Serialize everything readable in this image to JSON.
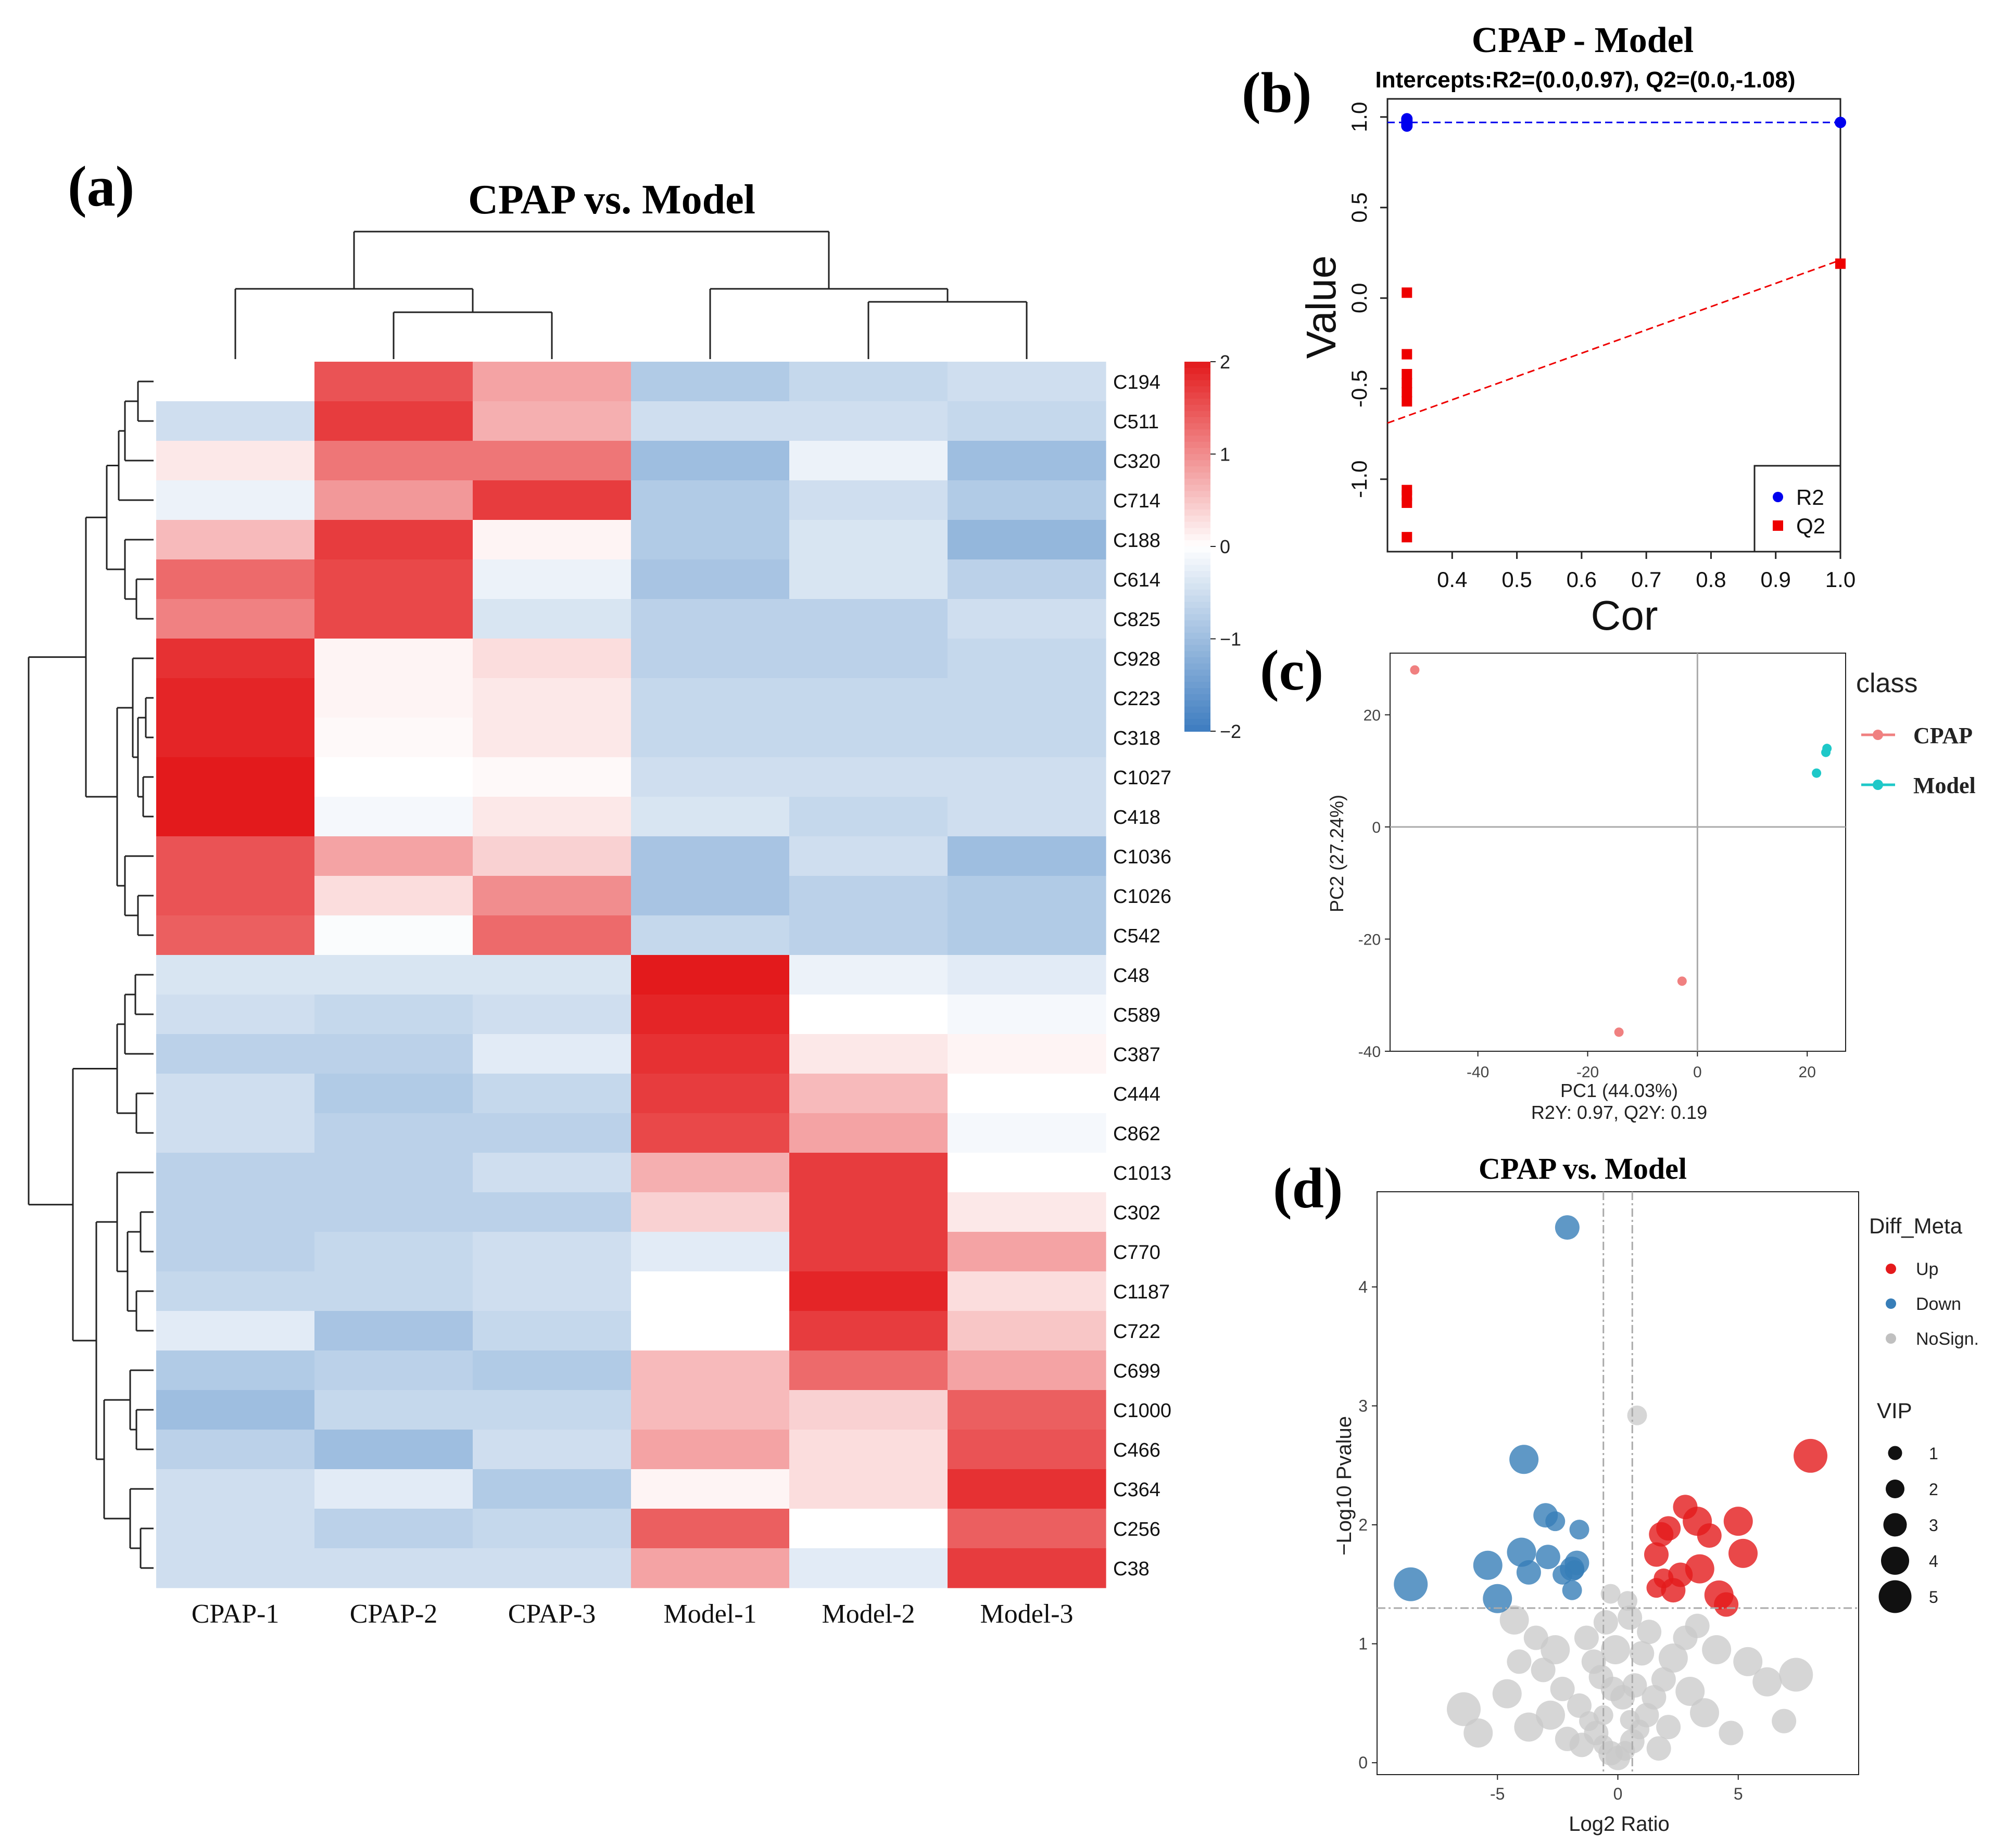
{
  "panel_labels": {
    "a": "(a)",
    "b": "(b)",
    "c": "(c)",
    "d": "(d)"
  },
  "chart_data": [
    {
      "type": "heatmap",
      "title": "CPAP vs. Model",
      "columns": [
        "CPAP-1",
        "CPAP-2",
        "CPAP-3",
        "Model-1",
        "Model-2",
        "Model-3"
      ],
      "rows": [
        "C194",
        "C511",
        "C320",
        "C714",
        "C188",
        "C614",
        "C825",
        "C928",
        "C223",
        "C318",
        "C1027",
        "C418",
        "C1036",
        "C1026",
        "C542",
        "C48",
        "C589",
        "C387",
        "C444",
        "C862",
        "C1013",
        "C302",
        "C770",
        "C1187",
        "C722",
        "C699",
        "C1000",
        "C466",
        "C364",
        "C256",
        "C38"
      ],
      "values": [
        [
          0.0,
          1.5,
          0.8,
          -0.8,
          -0.6,
          -0.5
        ],
        [
          -0.5,
          1.7,
          0.7,
          -0.5,
          -0.5,
          -0.6
        ],
        [
          0.2,
          1.2,
          1.2,
          -1.0,
          -0.2,
          -1.0
        ],
        [
          -0.2,
          0.9,
          1.7,
          -0.8,
          -0.5,
          -0.8
        ],
        [
          0.6,
          1.7,
          0.1,
          -0.8,
          -0.4,
          -1.1
        ],
        [
          1.3,
          1.6,
          -0.2,
          -0.9,
          -0.4,
          -0.7
        ],
        [
          1.1,
          1.6,
          -0.4,
          -0.7,
          -0.7,
          -0.5
        ],
        [
          1.8,
          0.1,
          0.3,
          -0.7,
          -0.7,
          -0.6
        ],
        [
          1.9,
          0.1,
          0.2,
          -0.6,
          -0.6,
          -0.6
        ],
        [
          1.9,
          0.05,
          0.2,
          -0.6,
          -0.6,
          -0.6
        ],
        [
          2.0,
          0.0,
          0.05,
          -0.5,
          -0.5,
          -0.5
        ],
        [
          2.0,
          -0.1,
          0.2,
          -0.4,
          -0.6,
          -0.5
        ],
        [
          1.5,
          0.8,
          0.4,
          -0.9,
          -0.5,
          -1.0
        ],
        [
          1.5,
          0.3,
          1.0,
          -0.9,
          -0.7,
          -0.8
        ],
        [
          1.4,
          -0.05,
          1.3,
          -0.6,
          -0.7,
          -0.8
        ],
        [
          -0.4,
          -0.4,
          -0.4,
          2.0,
          -0.2,
          -0.3
        ],
        [
          -0.5,
          -0.6,
          -0.5,
          1.9,
          0.0,
          -0.1
        ],
        [
          -0.7,
          -0.7,
          -0.3,
          1.8,
          0.2,
          0.1
        ],
        [
          -0.5,
          -0.8,
          -0.6,
          1.7,
          0.6,
          0.0
        ],
        [
          -0.5,
          -0.7,
          -0.7,
          1.6,
          0.8,
          -0.1
        ],
        [
          -0.7,
          -0.7,
          -0.5,
          0.7,
          1.7,
          0.0
        ],
        [
          -0.7,
          -0.7,
          -0.7,
          0.4,
          1.7,
          0.2
        ],
        [
          -0.7,
          -0.6,
          -0.5,
          -0.3,
          1.7,
          0.8
        ],
        [
          -0.6,
          -0.6,
          -0.5,
          0.0,
          1.9,
          0.3
        ],
        [
          -0.3,
          -0.9,
          -0.6,
          0.0,
          1.7,
          0.5
        ],
        [
          -0.8,
          -0.7,
          -0.8,
          0.6,
          1.3,
          0.8
        ],
        [
          -1.0,
          -0.6,
          -0.6,
          0.6,
          0.4,
          1.4
        ],
        [
          -0.7,
          -1.0,
          -0.5,
          0.8,
          0.3,
          1.5
        ],
        [
          -0.5,
          -0.3,
          -0.8,
          0.1,
          0.3,
          1.8
        ],
        [
          -0.5,
          -0.7,
          -0.6,
          1.4,
          0.0,
          1.4
        ],
        [
          -0.5,
          -0.5,
          -0.5,
          0.8,
          -0.3,
          1.7
        ]
      ],
      "colorbar": {
        "min": -2,
        "max": 2,
        "ticks": [
          2,
          1,
          0,
          -1,
          -2
        ],
        "tick_labels": [
          "2",
          "1",
          "0",
          "−1",
          "−2"
        ],
        "low_color": "#3d7cc0",
        "mid_color": "#ffffff",
        "high_color": "#e31a1c"
      }
    },
    {
      "type": "scatter",
      "title": "CPAP - Model",
      "subtitle": "Intercepts:R2=(0.0,0.97), Q2=(0.0,-1.08)",
      "xlabel": "Cor",
      "ylabel": "Value",
      "xlim": [
        0.3,
        1.0
      ],
      "ylim": [
        -1.4,
        1.1
      ],
      "xticks": [
        0.4,
        0.5,
        0.6,
        0.7,
        0.8,
        0.9,
        1.0
      ],
      "xtick_labels": [
        "0.4",
        "0.5",
        "0.6",
        "0.7",
        "0.8",
        "0.9",
        "1.0"
      ],
      "yticks": [
        -1.0,
        -0.5,
        0.0,
        0.5,
        1.0
      ],
      "ytick_labels": [
        "-1.0",
        "-0.5",
        "0.0",
        "0.5",
        "1.0"
      ],
      "series": [
        {
          "name": "R2",
          "color": "#0000ee",
          "marker": "circle",
          "points": [
            [
              0.33,
              0.99
            ],
            [
              0.33,
              0.98
            ],
            [
              0.33,
              0.97
            ],
            [
              0.33,
              0.96
            ],
            [
              0.33,
              0.95
            ],
            [
              1.0,
              0.97
            ]
          ],
          "line": {
            "x": [
              0.3,
              1.0
            ],
            "y": [
              0.97,
              0.97
            ]
          }
        },
        {
          "name": "Q2",
          "color": "#ee0000",
          "marker": "square",
          "points": [
            [
              0.33,
              0.03
            ],
            [
              0.33,
              -0.31
            ],
            [
              0.33,
              -0.42
            ],
            [
              0.33,
              -0.47
            ],
            [
              0.33,
              -0.52
            ],
            [
              0.33,
              -0.57
            ],
            [
              0.33,
              -1.06
            ],
            [
              0.33,
              -1.09
            ],
            [
              0.33,
              -1.13
            ],
            [
              0.33,
              -1.32
            ],
            [
              1.0,
              0.19
            ]
          ],
          "line": {
            "x": [
              0.3,
              1.0
            ],
            "y": [
              -0.69,
              0.21
            ]
          }
        }
      ],
      "legend": {
        "position": "bottom-right",
        "entries": [
          "R2",
          "Q2"
        ]
      }
    },
    {
      "type": "scatter",
      "xlabel": "PC1 (44.03%)",
      "xlabel2": "R2Y: 0.97, Q2Y: 0.19",
      "ylabel": "PC2 (27.24%)",
      "xlim": [
        -56,
        27
      ],
      "ylim": [
        -40,
        31
      ],
      "xticks": [
        -40,
        -20,
        0,
        20
      ],
      "xtick_labels": [
        "-40",
        "-20",
        "0",
        "20"
      ],
      "yticks": [
        20,
        0,
        -20,
        -40
      ],
      "ytick_labels": [
        "20",
        "0",
        "-20",
        "-40"
      ],
      "legend": {
        "title": "class",
        "position": "right",
        "entries": [
          "CPAP",
          "Model"
        ]
      },
      "series": [
        {
          "name": "CPAP",
          "color": "#f08080",
          "points": [
            [
              -51.5,
              28.0
            ],
            [
              -2.8,
              -27.5
            ],
            [
              -14.3,
              -36.6
            ]
          ]
        },
        {
          "name": "Model",
          "color": "#1ec8c8",
          "points": [
            [
              23.6,
              14.0
            ],
            [
              23.4,
              13.3
            ],
            [
              21.7,
              9.6
            ]
          ]
        }
      ]
    },
    {
      "type": "scatter",
      "title": "CPAP vs. Model",
      "xlabel": "Log2 Ratio",
      "ylabel": "−Log10 Pvalue",
      "xlim": [
        -10,
        10
      ],
      "ylim": [
        -0.1,
        4.8
      ],
      "xticks": [
        -5,
        0,
        5
      ],
      "xtick_labels": [
        "-5",
        "0",
        "5"
      ],
      "yticks": [
        0,
        1,
        2,
        3,
        4
      ],
      "ytick_labels": [
        "0",
        "1",
        "2",
        "3",
        "4"
      ],
      "thresholds": {
        "x": [
          -0.6,
          0.6
        ],
        "y": 1.3
      },
      "legend": {
        "title": "Diff_Meta",
        "entries": [
          {
            "label": "Up",
            "color": "#e41a1c"
          },
          {
            "label": "Down",
            "color": "#377eb8"
          },
          {
            "label": "NoSign.",
            "color": "#c0c0c0"
          }
        ],
        "size_title": "VIP",
        "size_entries": [
          "1",
          "2",
          "3",
          "4",
          "5"
        ]
      },
      "series": [
        {
          "name": "Up",
          "color": "#e41a1c",
          "points": [
            [
              8.0,
              2.58,
              5
            ],
            [
              2.8,
              2.15,
              3
            ],
            [
              5.0,
              2.03,
              4
            ],
            [
              3.3,
              2.03,
              4
            ],
            [
              2.1,
              1.97,
              3
            ],
            [
              1.8,
              1.92,
              3
            ],
            [
              3.8,
              1.91,
              3
            ],
            [
              5.2,
              1.76,
              4
            ],
            [
              3.4,
              1.63,
              4
            ],
            [
              2.6,
              1.58,
              3
            ],
            [
              1.6,
              1.75,
              3
            ],
            [
              4.2,
              1.41,
              4
            ],
            [
              4.5,
              1.33,
              3
            ],
            [
              1.6,
              1.47,
              2
            ],
            [
              2.3,
              1.45,
              3
            ],
            [
              1.9,
              1.55,
              2
            ]
          ]
        },
        {
          "name": "Down",
          "color": "#377eb8",
          "points": [
            [
              -2.1,
              4.5,
              3
            ],
            [
              -3.9,
              2.55,
              4
            ],
            [
              -3.0,
              2.08,
              3
            ],
            [
              -2.6,
              2.03,
              2
            ],
            [
              -1.6,
              1.96,
              2
            ],
            [
              -4.0,
              1.77,
              4
            ],
            [
              -2.9,
              1.73,
              3
            ],
            [
              -1.7,
              1.68,
              3
            ],
            [
              -8.6,
              1.5,
              5
            ],
            [
              -5.4,
              1.66,
              4
            ],
            [
              -3.7,
              1.6,
              3
            ],
            [
              -1.9,
              1.63,
              3
            ],
            [
              -2.3,
              1.58,
              2
            ],
            [
              -5.0,
              1.38,
              4
            ],
            [
              -1.9,
              1.45,
              2
            ],
            [
              -1.8,
              1.62,
              2
            ]
          ]
        },
        {
          "name": "NoSign.",
          "color": "#c8c8c8",
          "points": [
            [
              0.8,
              2.92,
              2
            ],
            [
              -4.3,
              1.2,
              4
            ],
            [
              -3.4,
              1.05,
              3
            ],
            [
              -2.6,
              0.95,
              4
            ],
            [
              -3.1,
              0.78,
              3
            ],
            [
              -2.3,
              0.62,
              3
            ],
            [
              -1.6,
              0.48,
              3
            ],
            [
              -1.2,
              0.35,
              2
            ],
            [
              -0.9,
              0.25,
              3
            ],
            [
              -0.6,
              0.15,
              2
            ],
            [
              -0.3,
              0.08,
              3
            ],
            [
              0.0,
              0.04,
              3
            ],
            [
              0.3,
              0.1,
              2
            ],
            [
              0.6,
              0.18,
              3
            ],
            [
              0.9,
              0.28,
              2
            ],
            [
              1.2,
              0.4,
              3
            ],
            [
              1.5,
              0.55,
              3
            ],
            [
              1.9,
              0.7,
              3
            ],
            [
              2.3,
              0.88,
              4
            ],
            [
              2.8,
              1.05,
              3
            ],
            [
              3.3,
              1.15,
              3
            ],
            [
              4.1,
              0.95,
              4
            ],
            [
              5.4,
              0.85,
              4
            ],
            [
              7.4,
              0.74,
              5
            ],
            [
              6.2,
              0.68,
              4
            ],
            [
              -6.4,
              0.45,
              5
            ],
            [
              -5.8,
              0.25,
              4
            ],
            [
              -4.6,
              0.58,
              4
            ],
            [
              -0.5,
              1.18,
              3
            ],
            [
              0.5,
              1.22,
              3
            ],
            [
              -1.0,
              0.85,
              3
            ],
            [
              1.0,
              0.92,
              3
            ],
            [
              -0.2,
              0.62,
              3
            ],
            [
              0.2,
              0.55,
              3
            ],
            [
              -1.5,
              0.15,
              3
            ],
            [
              1.7,
              0.12,
              3
            ],
            [
              -3.7,
              0.3,
              4
            ],
            [
              3.6,
              0.42,
              4
            ],
            [
              2.1,
              0.3,
              3
            ],
            [
              -2.1,
              0.2,
              3
            ],
            [
              4.7,
              0.25,
              3
            ],
            [
              -0.7,
              0.72,
              3
            ],
            [
              0.7,
              0.65,
              3
            ],
            [
              -1.3,
              1.05,
              3
            ],
            [
              1.3,
              1.1,
              3
            ],
            [
              6.9,
              0.35,
              3
            ],
            [
              -4.1,
              0.85,
              3
            ],
            [
              3.0,
              0.6,
              4
            ],
            [
              -2.8,
              0.4,
              4
            ],
            [
              -0.1,
              0.95,
              4
            ],
            [
              -0.6,
              0.4,
              2
            ],
            [
              0.5,
              0.36,
              2
            ],
            [
              -0.3,
              1.42,
              2
            ],
            [
              0.4,
              1.36,
              2
            ]
          ]
        }
      ]
    }
  ]
}
